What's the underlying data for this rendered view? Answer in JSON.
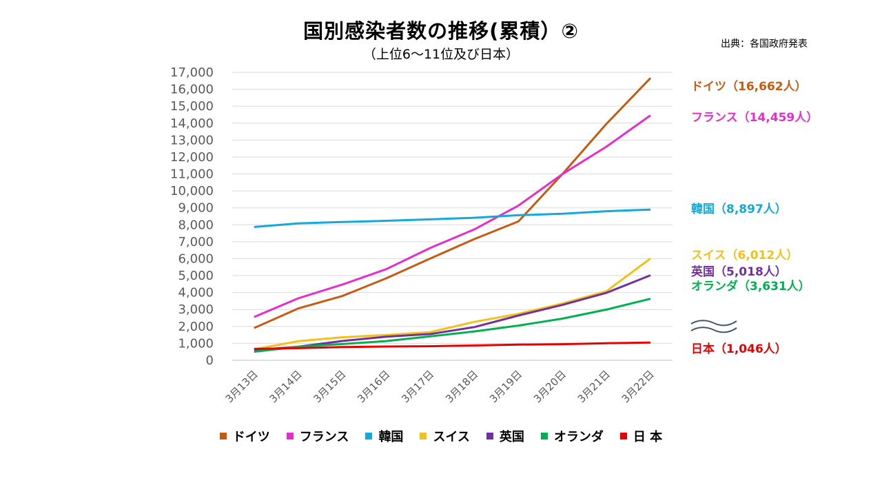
{
  "title": "国別感染者数の推移(累積）②",
  "subtitle": "（上位6～11位及び日本）",
  "source": "出典：各国政府発表",
  "chart_data": {
    "type": "line",
    "x": [
      "3月13日",
      "3月14日",
      "3月15日",
      "3月16日",
      "3月17日",
      "3月18日",
      "3月19日",
      "3月20日",
      "3月21日",
      "3月22日"
    ],
    "ylim": [
      0,
      17000
    ],
    "yticks": [
      "0",
      "1,000",
      "2,000",
      "3,000",
      "4,000",
      "5,000",
      "6,000",
      "7,000",
      "8,000",
      "9,000",
      "10,000",
      "11,000",
      "12,000",
      "13,000",
      "14,000",
      "15,000",
      "16,000",
      "17,000"
    ],
    "grid": true,
    "legend_position": "bottom",
    "series": [
      {
        "name": "ドイツ",
        "color": "#c55a11",
        "end_label": "ドイツ（16,662人）",
        "values": [
          1908,
          3062,
          3795,
          4838,
          6012,
          7156,
          8198,
          10999,
          13957,
          16662
        ]
      },
      {
        "name": "フランス",
        "color": "#e62ccd",
        "end_label": "フランス（14,459人）",
        "values": [
          2560,
          3661,
          4469,
          5380,
          6633,
          7730,
          9134,
          10995,
          12612,
          14459
        ]
      },
      {
        "name": "韓国",
        "color": "#12a9d8",
        "end_label": "韓国（8,897人）",
        "values": [
          7869,
          8086,
          8162,
          8236,
          8320,
          8413,
          8565,
          8652,
          8799,
          8897
        ]
      },
      {
        "name": "スイス",
        "color": "#f2c117",
        "end_label": "スイス（6,012人）",
        "values": [
          645,
          1125,
          1359,
          1497,
          1663,
          2269,
          2742,
          3352,
          4075,
          6012
        ]
      },
      {
        "name": "英国",
        "color": "#7030a0",
        "end_label": "英国（5,018人）",
        "values": [
          594,
          800,
          1140,
          1395,
          1551,
          1960,
          2642,
          3269,
          3983,
          5018
        ]
      },
      {
        "name": "オランダ",
        "color": "#00b050",
        "end_label": "オランダ（3,631人）",
        "values": [
          503,
          800,
          959,
          1135,
          1413,
          1705,
          2051,
          2460,
          2994,
          3631
        ]
      },
      {
        "name": "日 本",
        "color": "#e60000",
        "end_label": "日本（1,046人）",
        "values": [
          675,
          716,
          780,
          814,
          829,
          873,
          924,
          950,
          1007,
          1046
        ]
      }
    ]
  }
}
